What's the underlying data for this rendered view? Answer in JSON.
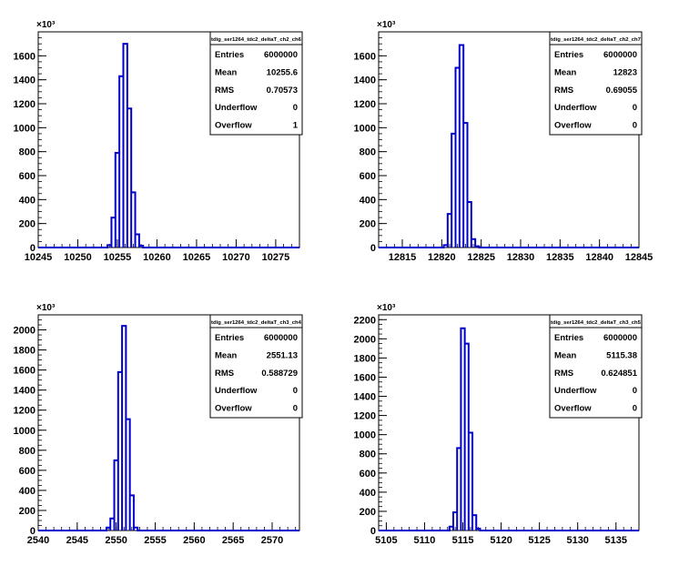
{
  "chart_data": [
    {
      "type": "histogram",
      "stats_title": "tdig_ser1264_tdc2_deltaT_ch2_ch6",
      "y_exponent_label": "×10³",
      "xlim": [
        10245,
        10278
      ],
      "x_ticks": [
        10245,
        10250,
        10255,
        10260,
        10265,
        10270,
        10275
      ],
      "ylim": [
        0,
        1800
      ],
      "y_ticks": [
        0,
        200,
        400,
        600,
        800,
        1000,
        1200,
        1400,
        1600
      ],
      "bin_width": 0.5,
      "bins": [
        {
          "x": 10254.0,
          "y": 20
        },
        {
          "x": 10254.5,
          "y": 250
        },
        {
          "x": 10255.0,
          "y": 790
        },
        {
          "x": 10255.5,
          "y": 1430
        },
        {
          "x": 10256.0,
          "y": 1700
        },
        {
          "x": 10256.5,
          "y": 1160
        },
        {
          "x": 10257.0,
          "y": 460
        },
        {
          "x": 10257.5,
          "y": 110
        },
        {
          "x": 10258.0,
          "y": 15
        }
      ],
      "stats": [
        {
          "label": "Entries",
          "value": "6000000"
        },
        {
          "label": "Mean",
          "value": "10255.6"
        },
        {
          "label": "RMS",
          "value": "0.70573"
        },
        {
          "label": "Underflow",
          "value": "0"
        },
        {
          "label": "Overflow",
          "value": "1"
        }
      ]
    },
    {
      "type": "histogram",
      "stats_title": "tdig_ser1264_tdc2_deltaT_ch2_ch7",
      "y_exponent_label": "×10³",
      "xlim": [
        12812,
        12845
      ],
      "x_ticks": [
        12815,
        12820,
        12825,
        12830,
        12835,
        12840,
        12845
      ],
      "ylim": [
        0,
        1800
      ],
      "y_ticks": [
        0,
        200,
        400,
        600,
        800,
        1000,
        1200,
        1400,
        1600
      ],
      "bin_width": 0.5,
      "bins": [
        {
          "x": 12820.5,
          "y": 20
        },
        {
          "x": 12821.0,
          "y": 280
        },
        {
          "x": 12821.5,
          "y": 950
        },
        {
          "x": 12822.0,
          "y": 1500
        },
        {
          "x": 12822.5,
          "y": 1690
        },
        {
          "x": 12823.0,
          "y": 1040
        },
        {
          "x": 12823.5,
          "y": 380
        },
        {
          "x": 12824.0,
          "y": 70
        },
        {
          "x": 12824.5,
          "y": 10
        }
      ],
      "stats": [
        {
          "label": "Entries",
          "value": "6000000"
        },
        {
          "label": "Mean",
          "value": "12823"
        },
        {
          "label": "RMS",
          "value": "0.69055"
        },
        {
          "label": "Underflow",
          "value": "0"
        },
        {
          "label": "Overflow",
          "value": "0"
        }
      ]
    },
    {
      "type": "histogram",
      "stats_title": "tdig_ser1264_tdc2_deltaT_ch3_ch4",
      "y_exponent_label": "×10³",
      "xlim": [
        2540,
        2573.5
      ],
      "x_ticks": [
        2540,
        2545,
        2550,
        2555,
        2560,
        2565,
        2570
      ],
      "ylim": [
        0,
        2150
      ],
      "y_ticks": [
        0,
        200,
        400,
        600,
        800,
        1000,
        1200,
        1400,
        1600,
        1800,
        2000
      ],
      "bin_width": 0.5,
      "bins": [
        {
          "x": 2549.0,
          "y": 30
        },
        {
          "x": 2549.5,
          "y": 120
        },
        {
          "x": 2550.0,
          "y": 700
        },
        {
          "x": 2550.5,
          "y": 1580
        },
        {
          "x": 2551.0,
          "y": 2040
        },
        {
          "x": 2551.5,
          "y": 1110
        },
        {
          "x": 2552.0,
          "y": 350
        },
        {
          "x": 2552.5,
          "y": 30
        }
      ],
      "stats": [
        {
          "label": "Entries",
          "value": "6000000"
        },
        {
          "label": "Mean",
          "value": "2551.13"
        },
        {
          "label": "RMS",
          "value": "0.588729"
        },
        {
          "label": "Underflow",
          "value": "0"
        },
        {
          "label": "Overflow",
          "value": "0"
        }
      ]
    },
    {
      "type": "histogram",
      "stats_title": "tdig_ser1264_tdc2_deltaT_ch3_ch5",
      "y_exponent_label": "×10³",
      "xlim": [
        5104,
        5138
      ],
      "x_ticks": [
        5105,
        5110,
        5115,
        5120,
        5125,
        5130,
        5135
      ],
      "ylim": [
        0,
        2250
      ],
      "y_ticks": [
        0,
        200,
        400,
        600,
        800,
        1000,
        1200,
        1400,
        1600,
        1800,
        2000,
        2200
      ],
      "bin_width": 0.5,
      "bins": [
        {
          "x": 5113.5,
          "y": 40
        },
        {
          "x": 5114.0,
          "y": 190
        },
        {
          "x": 5114.5,
          "y": 860
        },
        {
          "x": 5115.0,
          "y": 2110
        },
        {
          "x": 5115.5,
          "y": 1950
        },
        {
          "x": 5116.0,
          "y": 1020
        },
        {
          "x": 5116.5,
          "y": 160
        },
        {
          "x": 5117.0,
          "y": 20
        }
      ],
      "stats": [
        {
          "label": "Entries",
          "value": "6000000"
        },
        {
          "label": "Mean",
          "value": "5115.38"
        },
        {
          "label": "RMS",
          "value": "0.624851"
        },
        {
          "label": "Underflow",
          "value": "0"
        },
        {
          "label": "Overflow",
          "value": "0"
        }
      ]
    }
  ],
  "colors": {
    "histogram_line": "#0000cc",
    "axis": "#000000",
    "background": "#ffffff"
  }
}
